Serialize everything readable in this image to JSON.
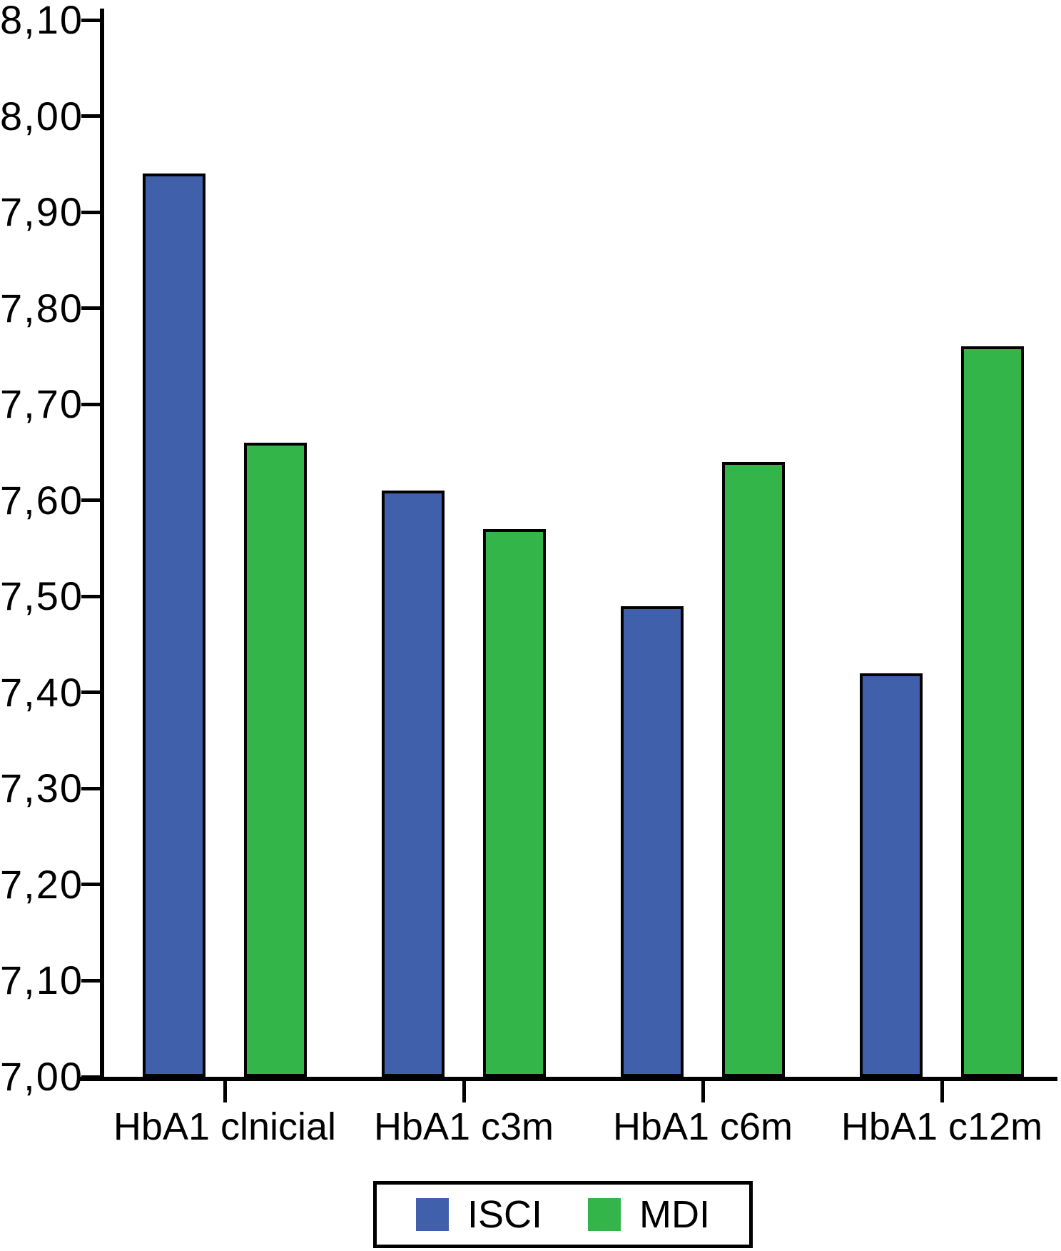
{
  "chart_data": {
    "type": "bar",
    "title": "",
    "xlabel": "",
    "ylabel": "",
    "categories": [
      "HbA1 clnicial",
      "HbA1 c3m",
      "HbA1 c6m",
      "HbA1 c12m"
    ],
    "series": [
      {
        "name": "ISCI",
        "color": "#4160AC",
        "values": [
          7.94,
          7.61,
          7.49,
          7.42
        ]
      },
      {
        "name": "MDI",
        "color": "#33B54A",
        "values": [
          7.66,
          7.57,
          7.64,
          7.76
        ]
      }
    ],
    "ylim": [
      7.0,
      8.1
    ],
    "y_tick_step": 0.1,
    "y_tick_labels": [
      "8,10",
      "8,00",
      "7,90",
      "7,80",
      "7,70",
      "7,60",
      "7,50",
      "7,40",
      "7,30",
      "7,20",
      "7,10",
      "7,00"
    ],
    "decimal_separator": ",",
    "grid": false,
    "legend_position": "bottom",
    "axis_color": "#000000",
    "background_color": "#FFFFFF"
  },
  "legend": {
    "items": [
      {
        "label": "ISCI",
        "color": "#4160AC"
      },
      {
        "label": "MDI",
        "color": "#33B54A"
      }
    ]
  }
}
